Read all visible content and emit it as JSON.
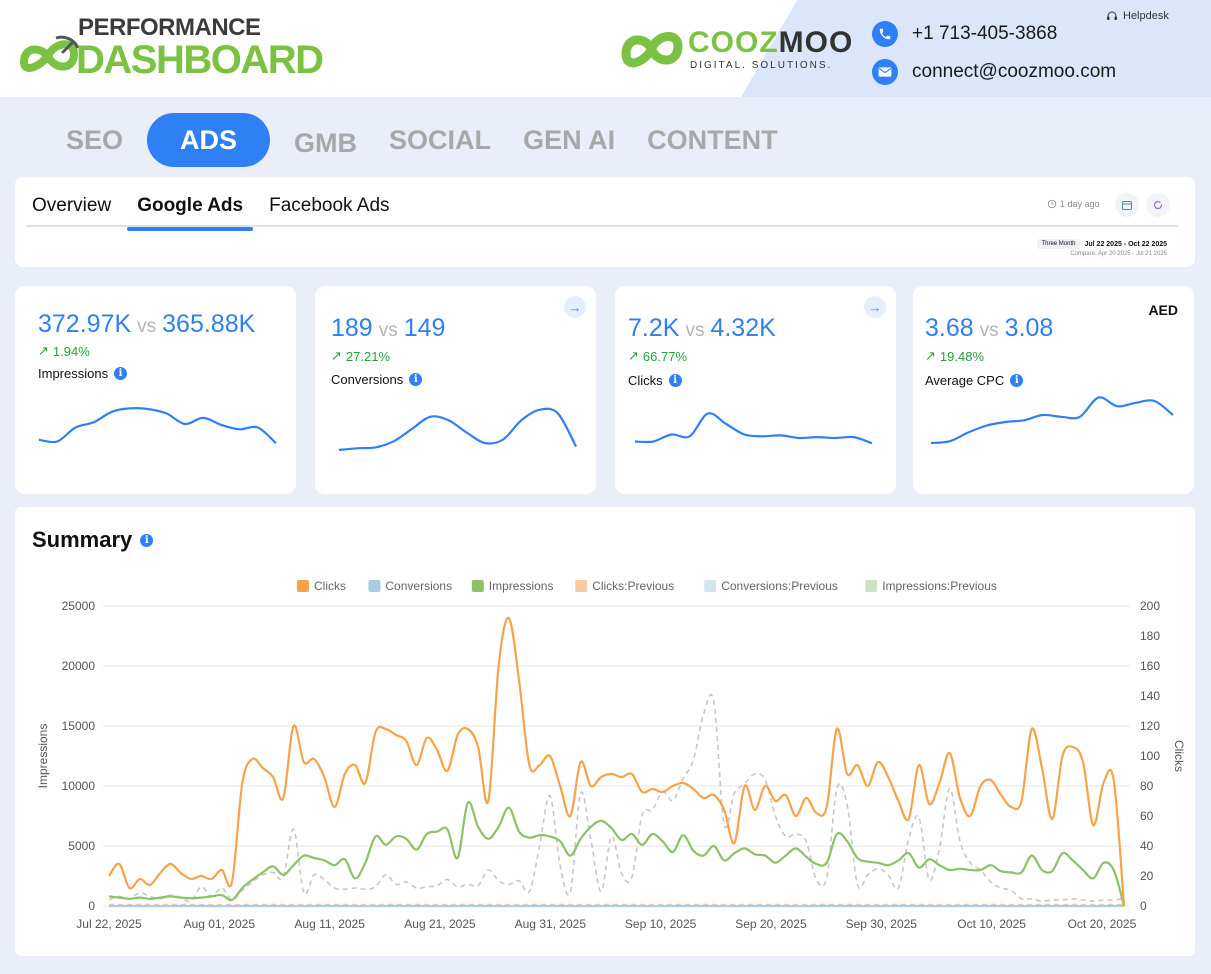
{
  "header": {
    "brand_top": "PERFORMANCE",
    "brand_bottom": "DASHBOARD",
    "company_name_green": "COOZ",
    "company_name_dark": "MOO",
    "company_sub": "DIGITAL. SOLUTIONS.",
    "phone": "+1 713-405-3868",
    "email": "connect@coozmoo.com",
    "helpdesk": "Helpdesk"
  },
  "main_tabs": [
    {
      "label": "SEO",
      "active": false
    },
    {
      "label": "ADS",
      "active": true
    },
    {
      "label": "GMB",
      "active": false
    },
    {
      "label": "SOCIAL",
      "active": false
    },
    {
      "label": "GEN AI",
      "active": false
    },
    {
      "label": "CONTENT",
      "active": false
    }
  ],
  "sub_tabs": [
    {
      "label": "Overview",
      "active": false
    },
    {
      "label": "Google Ads",
      "active": true
    },
    {
      "label": "Facebook Ads",
      "active": false
    }
  ],
  "toolbar": {
    "updated": "1 day ago",
    "range_badge": "Three Month",
    "range_dates": "Jul 22 2025 - Oct 22 2025",
    "compare": "Compare: Apr 20 2025 - Jul 21 2025"
  },
  "kpis": [
    {
      "current": "372.97K",
      "vs": "vs",
      "previous": "365.88K",
      "change": "1.94%",
      "label": "Impressions",
      "spark": [
        30,
        28,
        44,
        50,
        62,
        66,
        65,
        60,
        48,
        55,
        47,
        42,
        44,
        26
      ]
    },
    {
      "current": "189",
      "vs": "vs",
      "previous": "149",
      "change": "27.21%",
      "label": "Conversions",
      "spark": [
        24,
        26,
        27,
        34,
        48,
        62,
        58,
        44,
        32,
        36,
        58,
        70,
        66,
        28
      ]
    },
    {
      "current": "7.2K",
      "vs": "vs",
      "previous": "4.32K",
      "change": "66.77%",
      "label": "Clicks",
      "spark": [
        28,
        28,
        36,
        34,
        60,
        48,
        36,
        34,
        35,
        32,
        33,
        32,
        33,
        26
      ]
    },
    {
      "current": "3.68",
      "vs": "vs",
      "previous": "3.08",
      "change": "19.48%",
      "label": "Average CPC",
      "currency": "AED",
      "spark": [
        24,
        26,
        36,
        44,
        48,
        50,
        56,
        54,
        54,
        76,
        66,
        70,
        72,
        56
      ]
    }
  ],
  "summary": {
    "title": "Summary"
  },
  "chart_data": {
    "type": "line",
    "title": "",
    "legend_position": "top",
    "legend": [
      {
        "name": "Clicks",
        "color": "#f7a34a"
      },
      {
        "name": "Conversions",
        "color": "#a9cce3"
      },
      {
        "name": "Impressions",
        "color": "#8cc265"
      },
      {
        "name": "Clicks:Previous",
        "color": "#f7caa6"
      },
      {
        "name": "Conversions:Previous",
        "color": "#d0e6ea"
      },
      {
        "name": "Impressions:Previous",
        "color": "#cfe2bf"
      }
    ],
    "ylabel_left": "Impressions",
    "ylabel_right": "Clicks",
    "ylim_left": [
      0,
      25000
    ],
    "ylim_right": [
      0,
      200
    ],
    "yticks_left": [
      "0",
      "5000",
      "10000",
      "15000",
      "20000",
      "25000"
    ],
    "yticks_right": [
      "0",
      "20",
      "40",
      "60",
      "80",
      "100",
      "120",
      "140",
      "160",
      "180",
      "200"
    ],
    "xticks": [
      "Jul 22, 2025",
      "Aug 01, 2025",
      "Aug 11, 2025",
      "Aug 21, 2025",
      "Aug 31, 2025",
      "Sep 10, 2025",
      "Sep 20, 2025",
      "Sep 30, 2025",
      "Oct 10, 2025",
      "Oct 20, 2025"
    ],
    "series": [
      {
        "name": "Clicks",
        "axis": "right",
        "color": "#f7a34a",
        "values": [
          20,
          28,
          12,
          18,
          14,
          22,
          28,
          22,
          18,
          20,
          18,
          24,
          16,
          82,
          98,
          92,
          86,
          72,
          120,
          96,
          98,
          86,
          66,
          88,
          94,
          82,
          116,
          118,
          114,
          110,
          94,
          112,
          104,
          90,
          114,
          118,
          106,
          70,
          160,
          192,
          150,
          94,
          94,
          100,
          80,
          60,
          96,
          80,
          86,
          88,
          86,
          88,
          76,
          78,
          76,
          80,
          82,
          78,
          72,
          74,
          64,
          42,
          80,
          64,
          80,
          70,
          74,
          60,
          72,
          62,
          66,
          118,
          88,
          94,
          80,
          96,
          86,
          70,
          58,
          94,
          68,
          82,
          102,
          72,
          60,
          80,
          84,
          74,
          66,
          70,
          118,
          92,
          58,
          100,
          106,
          96,
          54,
          82,
          84,
          0
        ]
      },
      {
        "name": "Conversions",
        "axis": "right",
        "color": "#a9cce3",
        "values": [
          0,
          0,
          0,
          0,
          0,
          0,
          0,
          0,
          0,
          0,
          0,
          0,
          0,
          0,
          0,
          0,
          0,
          0,
          0,
          0,
          0,
          0,
          0,
          0,
          0,
          0,
          0,
          0,
          0,
          0,
          0,
          0,
          0,
          0,
          0,
          0,
          0,
          0,
          0,
          0,
          0,
          0,
          0,
          0,
          0,
          0,
          0,
          0,
          0,
          0,
          0,
          0,
          0,
          0,
          0,
          0,
          0,
          0,
          0,
          0,
          0,
          0,
          0,
          0,
          0,
          0,
          0,
          0,
          0,
          0,
          0,
          0,
          0,
          0,
          0,
          0,
          0,
          0,
          0,
          0,
          0,
          0,
          0,
          0,
          0,
          0,
          0,
          0,
          0,
          0,
          0,
          0,
          0,
          0,
          0,
          0,
          0,
          0,
          0,
          0
        ]
      },
      {
        "name": "Impressions",
        "axis": "left",
        "color": "#8cc265",
        "values": [
          800,
          700,
          600,
          700,
          600,
          700,
          800,
          700,
          650,
          700,
          800,
          900,
          500,
          1500,
          2200,
          2800,
          3300,
          2600,
          3400,
          4200,
          4000,
          3800,
          3400,
          3900,
          2300,
          3600,
          5800,
          5100,
          5800,
          5600,
          4700,
          6000,
          6200,
          6400,
          4000,
          8600,
          6600,
          5600,
          6600,
          8200,
          6200,
          5700,
          5900,
          5800,
          5400,
          4200,
          5600,
          6600,
          7100,
          6500,
          5500,
          6000,
          5100,
          6000,
          5400,
          4500,
          5900,
          4600,
          4200,
          5000,
          3800,
          4400,
          4800,
          4300,
          4200,
          3600,
          4200,
          4800,
          4100,
          3500,
          3600,
          6000,
          5400,
          4000,
          3700,
          3600,
          3400,
          3800,
          4400,
          3200,
          3900,
          3400,
          3000,
          3100,
          3000,
          3000,
          3400,
          2900,
          2800,
          2800,
          4200,
          3000,
          2900,
          4400,
          3800,
          3000,
          2300,
          3600,
          3000,
          0
        ]
      },
      {
        "name": "Clicks:Previous",
        "axis": "right",
        "color": "#f7caa6",
        "values": [
          1,
          1,
          1,
          1,
          1,
          1,
          1,
          1,
          1,
          1,
          1,
          1,
          1,
          1,
          1,
          1,
          1,
          1,
          1,
          1,
          1,
          1,
          1,
          1,
          1,
          1,
          1,
          1,
          1,
          1,
          1,
          1,
          1,
          1,
          1,
          1,
          1,
          1,
          1,
          1,
          1,
          1,
          1,
          1,
          1,
          1,
          1,
          1,
          1,
          1,
          1,
          1,
          1,
          1,
          1,
          1,
          1,
          1,
          1,
          1,
          1,
          1,
          1,
          1,
          1,
          1,
          1,
          1,
          1,
          1,
          1,
          1,
          1,
          1,
          1,
          1,
          1,
          1,
          1,
          1,
          1,
          1,
          1,
          1,
          1,
          1,
          1,
          1,
          1,
          1,
          1,
          1,
          1,
          1,
          1,
          1,
          1,
          1,
          1,
          1
        ]
      },
      {
        "name": "Conversions:Previous",
        "axis": "right",
        "color": "#d0e6ea",
        "values": [
          0,
          0,
          0,
          0,
          0,
          0,
          0,
          0,
          0,
          0,
          0,
          0,
          0,
          0,
          0,
          0,
          0,
          0,
          0,
          0,
          0,
          0,
          0,
          0,
          0,
          0,
          0,
          0,
          0,
          0,
          0,
          0,
          0,
          0,
          0,
          0,
          0,
          0,
          0,
          0,
          0,
          0,
          0,
          0,
          0,
          0,
          0,
          0,
          0,
          0,
          0,
          0,
          0,
          0,
          0,
          0,
          0,
          0,
          0,
          0,
          0,
          0,
          0,
          0,
          0,
          0,
          0,
          0,
          0,
          0,
          0,
          0,
          0,
          0,
          0,
          0,
          0,
          0,
          0,
          0,
          0,
          0,
          0,
          0,
          0,
          0,
          0,
          0,
          0,
          0,
          0,
          0,
          0,
          0,
          0,
          0,
          0,
          0,
          0,
          0
        ]
      },
      {
        "name": "Impressions:Previous",
        "axis": "left",
        "color": "#c7c7c7",
        "values": [
          500,
          800,
          600,
          1100,
          800,
          600,
          900,
          700,
          400,
          1600,
          800,
          1500,
          500,
          1300,
          2000,
          2600,
          2800,
          2400,
          6400,
          1100,
          2600,
          2200,
          1500,
          1400,
          1500,
          1400,
          1600,
          2600,
          1800,
          2000,
          1500,
          1600,
          1700,
          2200,
          1600,
          1800,
          1700,
          3000,
          2100,
          1800,
          2100,
          1200,
          5000,
          9200,
          3400,
          1200,
          9400,
          5500,
          1200,
          5800,
          2700,
          2400,
          7600,
          8000,
          9500,
          8800,
          10600,
          12200,
          16000,
          17000,
          6800,
          9400,
          10200,
          11000,
          10500,
          7500,
          5800,
          6000,
          5400,
          2200,
          2400,
          9800,
          8400,
          1800,
          2600,
          3100,
          2600,
          1500,
          5600,
          7400,
          2200,
          4800,
          9800,
          5400,
          3600,
          3000,
          2000,
          1500,
          1300,
          600,
          600,
          400,
          500,
          500,
          600,
          500,
          400,
          500,
          500,
          600
        ]
      }
    ]
  }
}
